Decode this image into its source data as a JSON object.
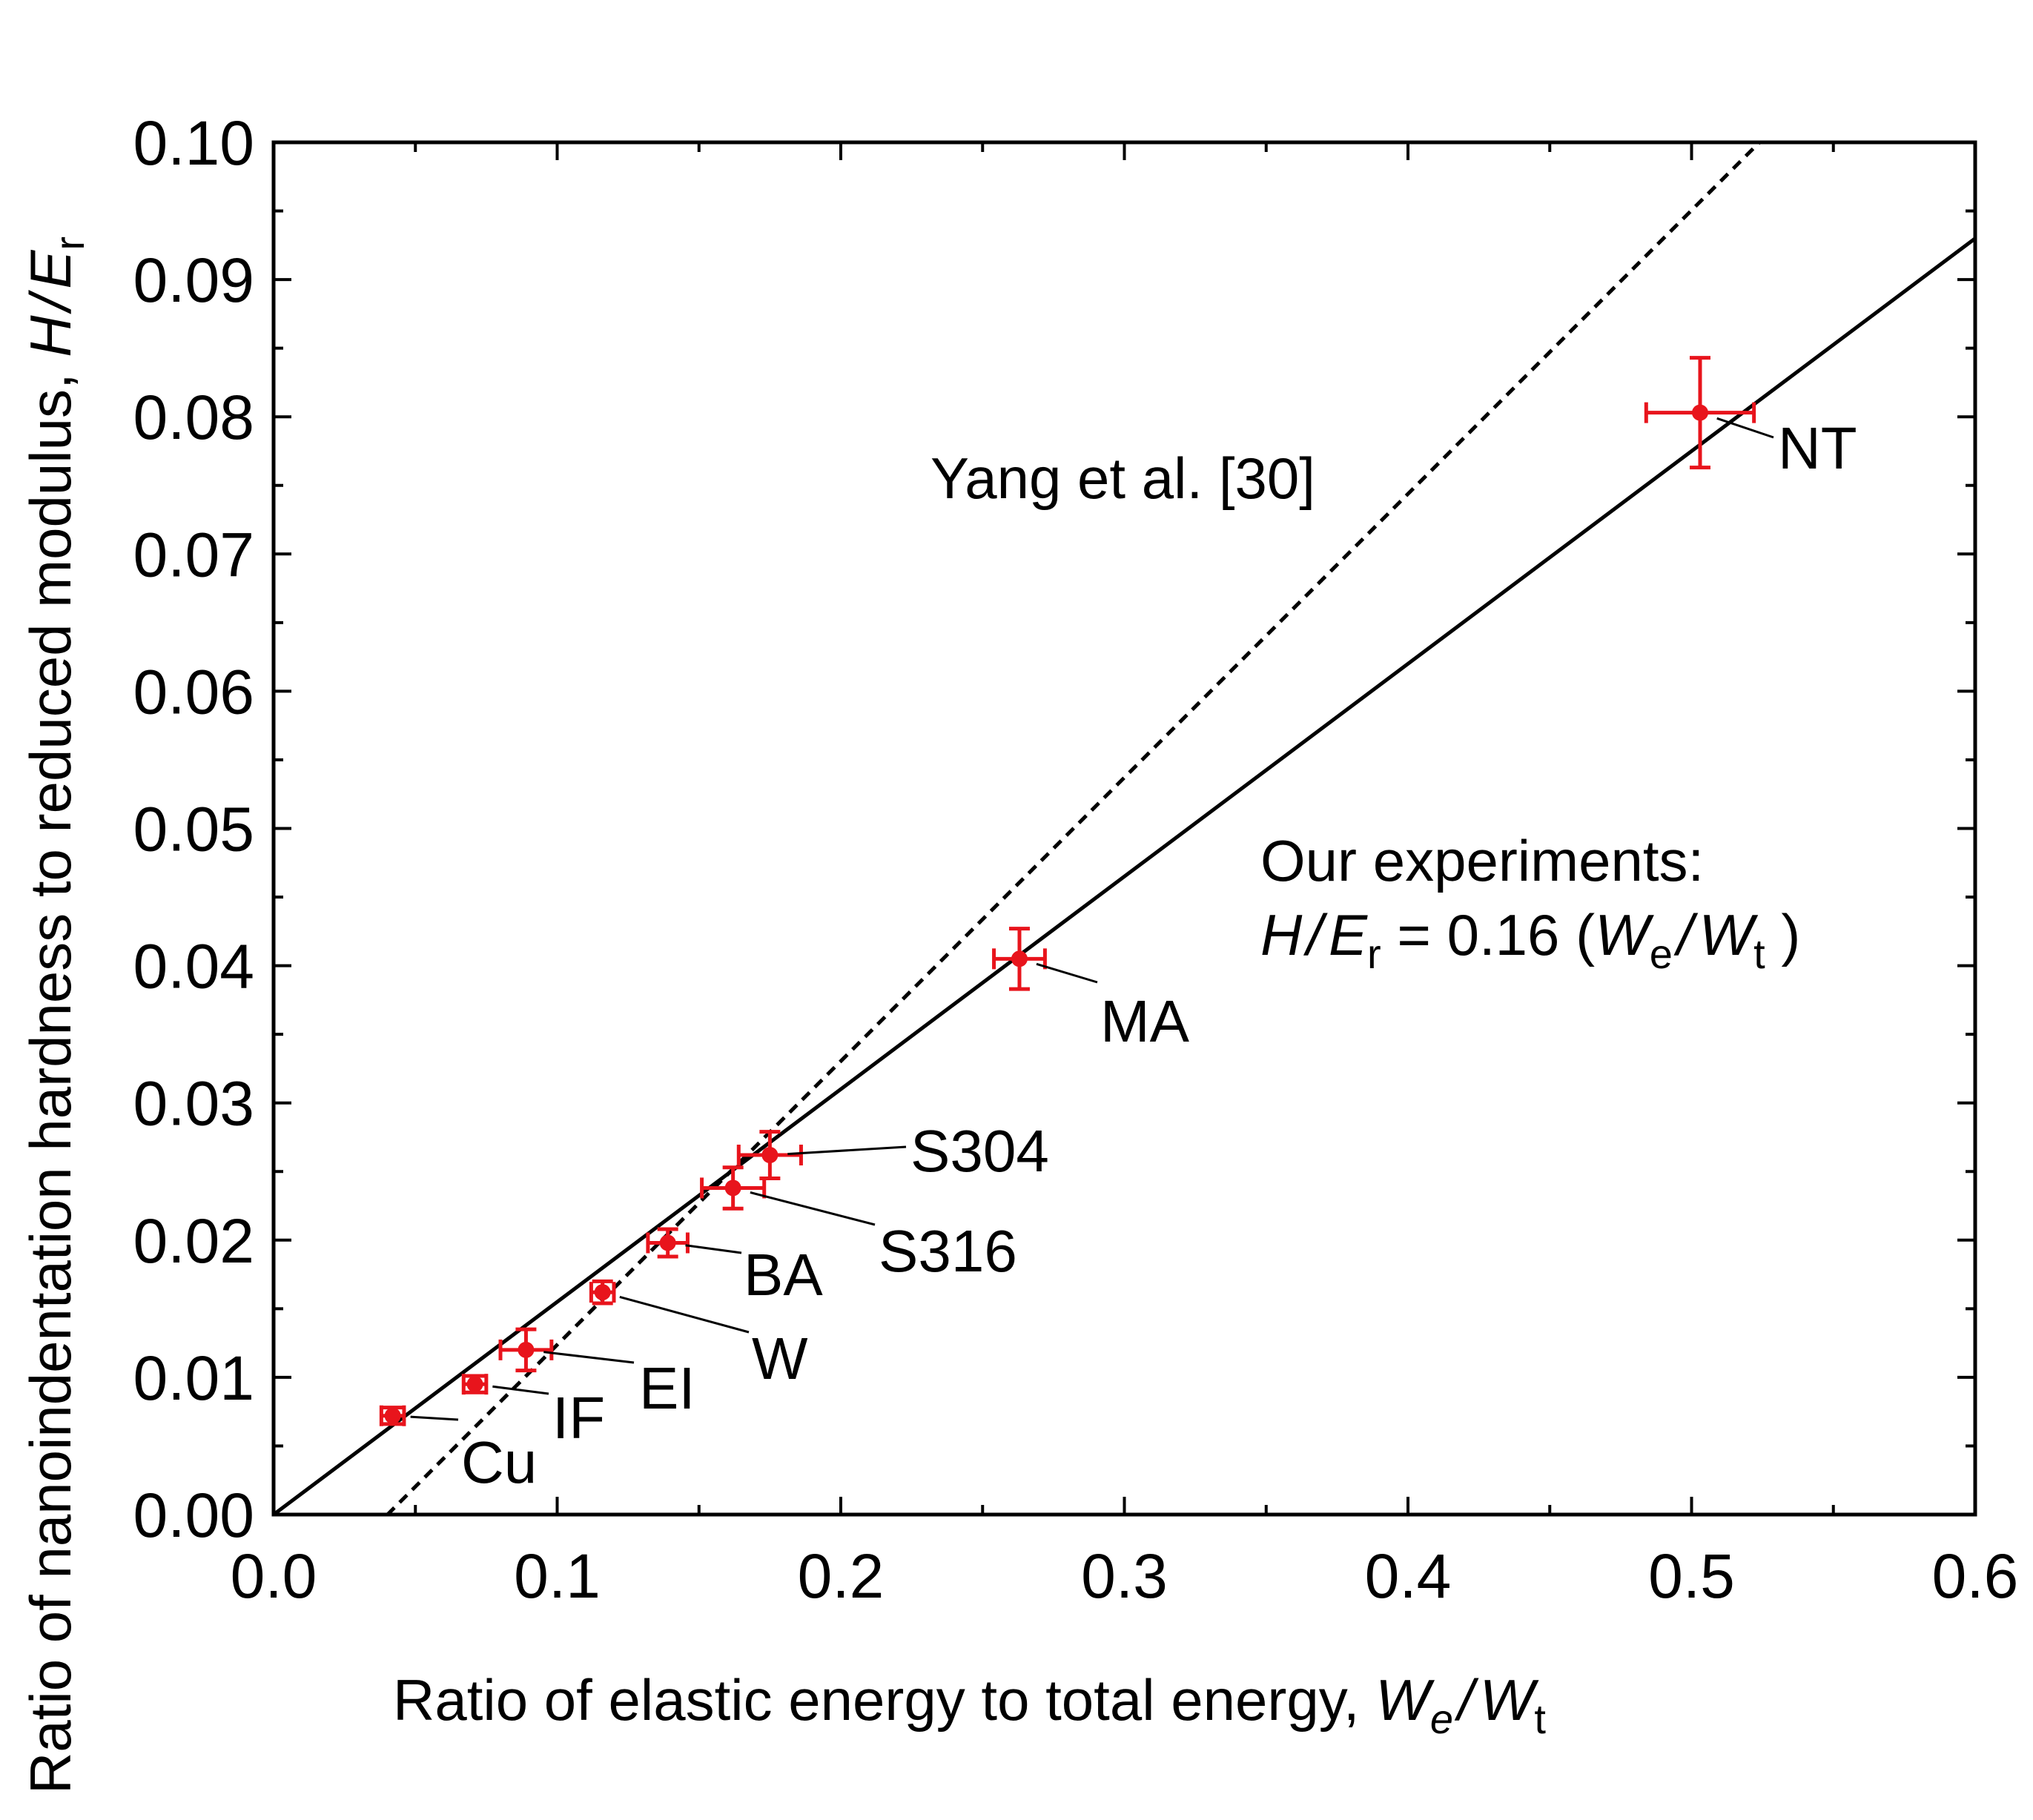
{
  "chart_data": {
    "type": "scatter",
    "title": "",
    "xlabel": "Ratio of elastic energy to total energy, We/Wt",
    "ylabel": "Ratio of nanoindentation hardness to reduced modulus, H/Er",
    "xlabel_parts": {
      "text": "Ratio of elastic energy to total energy, ",
      "v1": "W",
      "s1": "e",
      "sep": "/",
      "v2": "W",
      "s2": "t"
    },
    "ylabel_parts": {
      "text": "Ratio of nanoindentation hardness to reduced modulus, ",
      "v1": "H",
      "sep": "/",
      "v2": "E",
      "s2": "r"
    },
    "xlim": [
      0.0,
      0.6
    ],
    "ylim": [
      0.0,
      0.1
    ],
    "xticks": [
      "0.0",
      "0.1",
      "0.2",
      "0.3",
      "0.4",
      "0.5",
      "0.6"
    ],
    "yticks": [
      "0.00",
      "0.01",
      "0.02",
      "0.03",
      "0.04",
      "0.05",
      "0.06",
      "0.07",
      "0.08",
      "0.09",
      "0.10"
    ],
    "grid": false,
    "point_color": "#e8141c",
    "points": [
      {
        "label": "Cu",
        "x": 0.042,
        "y": 0.0072,
        "xerr": 0.004,
        "yerr": 0.0006
      },
      {
        "label": "IF",
        "x": 0.071,
        "y": 0.0095,
        "xerr": 0.004,
        "yerr": 0.0006
      },
      {
        "label": "EI",
        "x": 0.089,
        "y": 0.012,
        "xerr": 0.009,
        "yerr": 0.0015
      },
      {
        "label": "W",
        "x": 0.116,
        "y": 0.0162,
        "xerr": 0.004,
        "yerr": 0.0008
      },
      {
        "label": "BA",
        "x": 0.139,
        "y": 0.0198,
        "xerr": 0.007,
        "yerr": 0.001
      },
      {
        "label": "S316",
        "x": 0.162,
        "y": 0.0238,
        "xerr": 0.011,
        "yerr": 0.0015
      },
      {
        "label": "S304",
        "x": 0.175,
        "y": 0.0262,
        "xerr": 0.011,
        "yerr": 0.0017
      },
      {
        "label": "MA",
        "x": 0.263,
        "y": 0.0405,
        "xerr": 0.009,
        "yerr": 0.0022
      },
      {
        "label": "NT",
        "x": 0.503,
        "y": 0.0803,
        "xerr": 0.019,
        "yerr": 0.004
      }
    ],
    "lines": [
      {
        "name": "Our experiments fit",
        "style": "solid",
        "slope": 0.155,
        "intercept": 0.0,
        "x_from": 0.0,
        "x_to": 0.6
      },
      {
        "name": "Yang et al. [30]",
        "style": "dashed",
        "slope": 0.2067,
        "intercept": -0.0083,
        "x_from": 0.04,
        "x_to": 0.524
      }
    ],
    "annotations": {
      "yang": "Yang et al. [30]",
      "ours_line1": "Our experiments:",
      "ours_eq": {
        "v1": "H",
        "sep": "/",
        "v2": "E",
        "s2": "r",
        "rhs": " = 0.16 (",
        "v3": "W",
        "s3": "e",
        "sep2": "/",
        "v4": "W",
        "s4": "t",
        "close": " )"
      }
    }
  }
}
